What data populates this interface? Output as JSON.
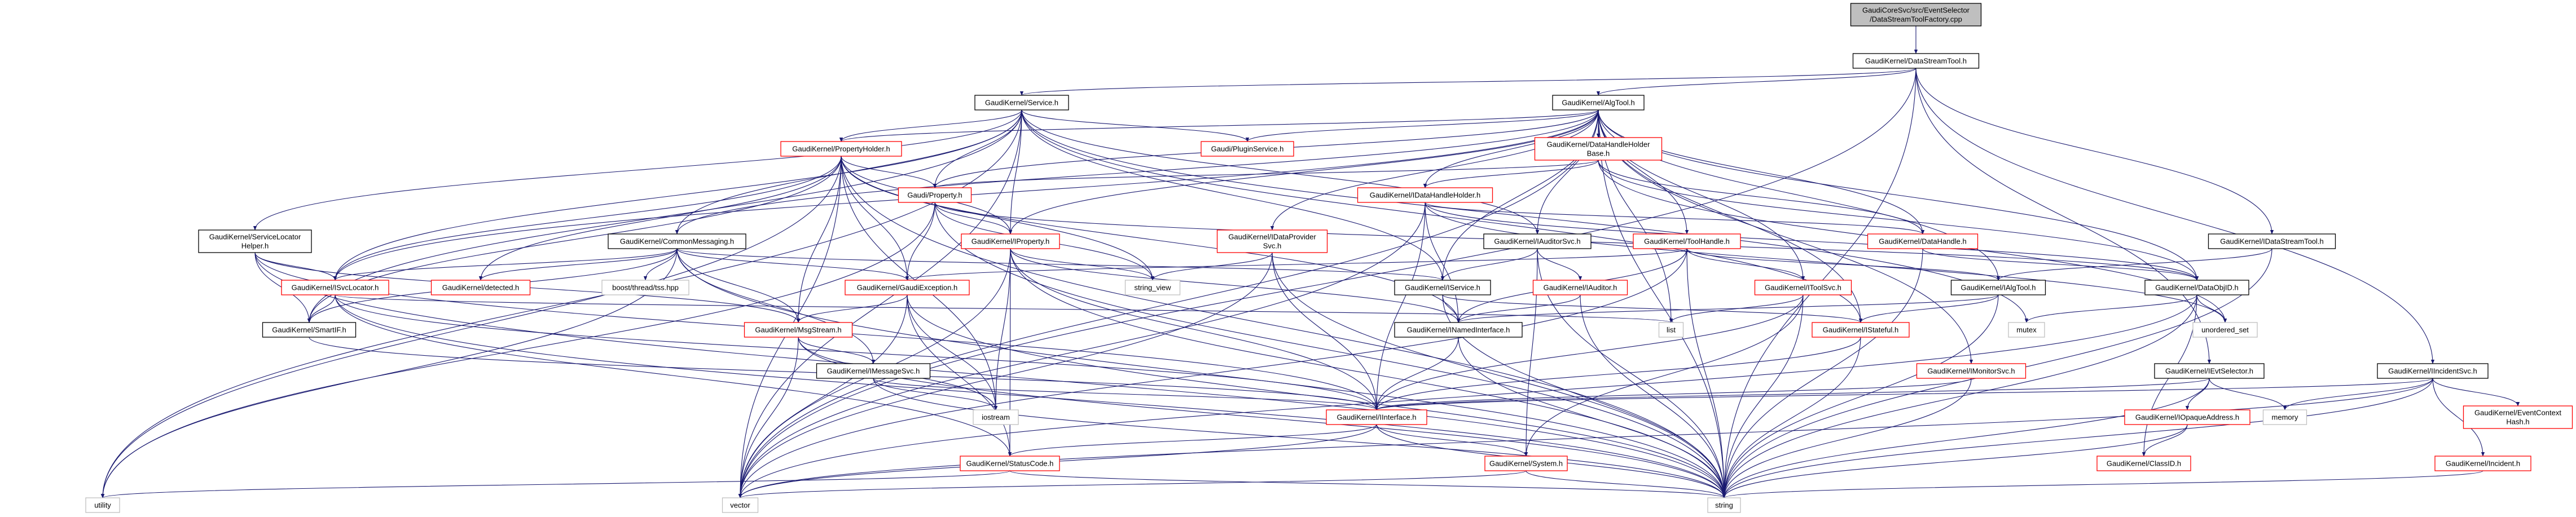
{
  "colors": {
    "edge": "#191970",
    "red_border": "#ff0000",
    "black_border": "#000000",
    "external_border": "#bfbfbf",
    "root_fill": "#bfbfbf"
  },
  "nodes": {
    "root": {
      "lines": [
        "GaudiCoreSvc/src/EventSelector",
        "/DataStreamToolFactory.cpp"
      ],
      "kind": "root"
    },
    "DataStreamTool": {
      "lines": [
        "GaudiKernel/DataStreamTool.h"
      ],
      "kind": "black"
    },
    "Service": {
      "lines": [
        "GaudiKernel/Service.h"
      ],
      "kind": "black"
    },
    "AlgTool": {
      "lines": [
        "GaudiKernel/AlgTool.h"
      ],
      "kind": "black"
    },
    "PropertyHolder": {
      "lines": [
        "GaudiKernel/PropertyHolder.h"
      ],
      "kind": "red"
    },
    "PluginService": {
      "lines": [
        "Gaudi/PluginService.h"
      ],
      "kind": "red"
    },
    "DataHandleHolderBase": {
      "lines": [
        "GaudiKernel/DataHandleHolder",
        "Base.h"
      ],
      "kind": "red"
    },
    "Property": {
      "lines": [
        "Gaudi/Property.h"
      ],
      "kind": "red"
    },
    "IDataHandleHolder": {
      "lines": [
        "GaudiKernel/IDataHandleHolder.h"
      ],
      "kind": "red"
    },
    "ServiceLocatorHelper": {
      "lines": [
        "GaudiKernel/ServiceLocator",
        "Helper.h"
      ],
      "kind": "black"
    },
    "CommonMessaging": {
      "lines": [
        "GaudiKernel/CommonMessaging.h"
      ],
      "kind": "black"
    },
    "IProperty": {
      "lines": [
        "GaudiKernel/IProperty.h"
      ],
      "kind": "red"
    },
    "IDataProviderSvc": {
      "lines": [
        "GaudiKernel/IDataProvider",
        "Svc.h"
      ],
      "kind": "red"
    },
    "IAuditorSvc": {
      "lines": [
        "GaudiKernel/IAuditorSvc.h"
      ],
      "kind": "black"
    },
    "ToolHandle": {
      "lines": [
        "GaudiKernel/ToolHandle.h"
      ],
      "kind": "red"
    },
    "DataHandle": {
      "lines": [
        "GaudiKernel/DataHandle.h"
      ],
      "kind": "red"
    },
    "IDataStreamTool": {
      "lines": [
        "GaudiKernel/IDataStreamTool.h"
      ],
      "kind": "black"
    },
    "ISvcLocator": {
      "lines": [
        "GaudiKernel/ISvcLocator.h"
      ],
      "kind": "red"
    },
    "detected": {
      "lines": [
        "GaudiKernel/detected.h"
      ],
      "kind": "red"
    },
    "boost": {
      "lines": [
        "boost/thread/tss.hpp"
      ],
      "kind": "external"
    },
    "GaudiException": {
      "lines": [
        "GaudiKernel/GaudiException.h"
      ],
      "kind": "red"
    },
    "string_view": {
      "lines": [
        "string_view"
      ],
      "kind": "external"
    },
    "IService": {
      "lines": [
        "GaudiKernel/IService.h"
      ],
      "kind": "black"
    },
    "IAuditor": {
      "lines": [
        "GaudiKernel/IAuditor.h"
      ],
      "kind": "red"
    },
    "IToolSvc": {
      "lines": [
        "GaudiKernel/IToolSvc.h"
      ],
      "kind": "red"
    },
    "IAlgTool": {
      "lines": [
        "GaudiKernel/IAlgTool.h"
      ],
      "kind": "black"
    },
    "DataObjID": {
      "lines": [
        "GaudiKernel/DataObjID.h"
      ],
      "kind": "black"
    },
    "SmartIF": {
      "lines": [
        "GaudiKernel/SmartIF.h"
      ],
      "kind": "black"
    },
    "MsgStream": {
      "lines": [
        "GaudiKernel/MsgStream.h"
      ],
      "kind": "red"
    },
    "INamedInterface": {
      "lines": [
        "GaudiKernel/INamedInterface.h"
      ],
      "kind": "black"
    },
    "list": {
      "lines": [
        "list"
      ],
      "kind": "external"
    },
    "IStateful": {
      "lines": [
        "GaudiKernel/IStateful.h"
      ],
      "kind": "red"
    },
    "mutex": {
      "lines": [
        "mutex"
      ],
      "kind": "external"
    },
    "unordered_set": {
      "lines": [
        "unordered_set"
      ],
      "kind": "external"
    },
    "IMessageSvc": {
      "lines": [
        "GaudiKernel/IMessageSvc.h"
      ],
      "kind": "black"
    },
    "IMonitorSvc": {
      "lines": [
        "GaudiKernel/IMonitorSvc.h"
      ],
      "kind": "red"
    },
    "IEvtSelector": {
      "lines": [
        "GaudiKernel/IEvtSelector.h"
      ],
      "kind": "black"
    },
    "IIncidentSvc": {
      "lines": [
        "GaudiKernel/IIncidentSvc.h"
      ],
      "kind": "black"
    },
    "iostream": {
      "lines": [
        "iostream"
      ],
      "kind": "external"
    },
    "IInterface": {
      "lines": [
        "GaudiKernel/IInterface.h"
      ],
      "kind": "red"
    },
    "IOpaqueAddress": {
      "lines": [
        "GaudiKernel/IOpaqueAddress.h"
      ],
      "kind": "red"
    },
    "memory": {
      "lines": [
        "memory"
      ],
      "kind": "external"
    },
    "EventContextHash": {
      "lines": [
        "GaudiKernel/EventContext",
        "Hash.h"
      ],
      "kind": "red"
    },
    "StatusCode": {
      "lines": [
        "GaudiKernel/StatusCode.h"
      ],
      "kind": "red"
    },
    "System": {
      "lines": [
        "GaudiKernel/System.h"
      ],
      "kind": "red"
    },
    "ClassID": {
      "lines": [
        "GaudiKernel/ClassID.h"
      ],
      "kind": "red"
    },
    "Incident": {
      "lines": [
        "GaudiKernel/Incident.h"
      ],
      "kind": "red"
    },
    "utility": {
      "lines": [
        "utility"
      ],
      "kind": "external"
    },
    "vector": {
      "lines": [
        "vector"
      ],
      "kind": "external"
    },
    "string": {
      "lines": [
        "string"
      ],
      "kind": "external"
    }
  },
  "edges": [
    [
      "root",
      "DataStreamTool"
    ],
    [
      "DataStreamTool",
      "Service"
    ],
    [
      "DataStreamTool",
      "AlgTool"
    ],
    [
      "DataStreamTool",
      "IDataStreamTool"
    ],
    [
      "DataStreamTool",
      "IEvtSelector"
    ],
    [
      "DataStreamTool",
      "IIncidentSvc"
    ],
    [
      "DataStreamTool",
      "vector"
    ],
    [
      "DataStreamTool",
      "string"
    ],
    [
      "Service",
      "PropertyHolder"
    ],
    [
      "Service",
      "PluginService"
    ],
    [
      "Service",
      "Property"
    ],
    [
      "Service",
      "IProperty"
    ],
    [
      "Service",
      "IService"
    ],
    [
      "Service",
      "IAuditorSvc"
    ],
    [
      "Service",
      "CommonMessaging"
    ],
    [
      "Service",
      "ISvcLocator"
    ],
    [
      "Service",
      "ServiceLocatorHelper"
    ],
    [
      "Service",
      "SmartIF"
    ],
    [
      "Service",
      "IStateful"
    ],
    [
      "Service",
      "mutex"
    ],
    [
      "Service",
      "utility"
    ],
    [
      "Service",
      "vector"
    ],
    [
      "AlgTool",
      "DataHandleHolderBase"
    ],
    [
      "AlgTool",
      "IDataHandleHolder"
    ],
    [
      "AlgTool",
      "PropertyHolder"
    ],
    [
      "AlgTool",
      "PluginService"
    ],
    [
      "AlgTool",
      "Property"
    ],
    [
      "AlgTool",
      "IProperty"
    ],
    [
      "AlgTool",
      "CommonMessaging"
    ],
    [
      "AlgTool",
      "IAlgTool"
    ],
    [
      "AlgTool",
      "IAuditorSvc"
    ],
    [
      "AlgTool",
      "IDataProviderSvc"
    ],
    [
      "AlgTool",
      "IMonitorSvc"
    ],
    [
      "AlgTool",
      "IService"
    ],
    [
      "AlgTool",
      "IStateful"
    ],
    [
      "AlgTool",
      "ISvcLocator"
    ],
    [
      "AlgTool",
      "IToolSvc"
    ],
    [
      "AlgTool",
      "ToolHandle"
    ],
    [
      "AlgTool",
      "DataHandle"
    ],
    [
      "AlgTool",
      "DataObjID"
    ],
    [
      "AlgTool",
      "list"
    ],
    [
      "AlgTool",
      "vector"
    ],
    [
      "AlgTool",
      "string"
    ],
    [
      "PropertyHolder",
      "Property"
    ],
    [
      "PropertyHolder",
      "IProperty"
    ],
    [
      "PropertyHolder",
      "detected"
    ],
    [
      "PropertyHolder",
      "GaudiException"
    ],
    [
      "PropertyHolder",
      "MsgStream"
    ],
    [
      "PropertyHolder",
      "INamedInterface"
    ],
    [
      "PropertyHolder",
      "ISvcLocator"
    ],
    [
      "PropertyHolder",
      "SmartIF"
    ],
    [
      "PropertyHolder",
      "string"
    ],
    [
      "PropertyHolder",
      "utility"
    ],
    [
      "PropertyHolder",
      "vector"
    ],
    [
      "PropertyHolder",
      "iostream"
    ],
    [
      "PropertyHolder",
      "string_view"
    ],
    [
      "Property",
      "IProperty"
    ],
    [
      "Property",
      "GaudiException"
    ],
    [
      "Property",
      "string_view"
    ],
    [
      "Property",
      "string"
    ],
    [
      "Property",
      "utility"
    ],
    [
      "Property",
      "DataObjID"
    ],
    [
      "DataHandleHolderBase",
      "IDataHandleHolder"
    ],
    [
      "DataHandleHolderBase",
      "DataHandle"
    ],
    [
      "DataHandleHolderBase",
      "DataObjID"
    ],
    [
      "DataHandleHolderBase",
      "unordered_set"
    ],
    [
      "DataHandleHolderBase",
      "Property"
    ],
    [
      "IDataHandleHolder",
      "DataHandle"
    ],
    [
      "IDataHandleHolder",
      "DataObjID"
    ],
    [
      "IDataHandleHolder",
      "INamedInterface"
    ],
    [
      "IDataHandleHolder",
      "IInterface"
    ],
    [
      "IDataHandleHolder",
      "vector"
    ],
    [
      "IDataHandleHolder",
      "unordered_set"
    ],
    [
      "ServiceLocatorHelper",
      "ISvcLocator"
    ],
    [
      "ServiceLocatorHelper",
      "SmartIF"
    ],
    [
      "ServiceLocatorHelper",
      "MsgStream"
    ],
    [
      "ServiceLocatorHelper",
      "string"
    ],
    [
      "ServiceLocatorHelper",
      "IInterface"
    ],
    [
      "CommonMessaging",
      "ISvcLocator"
    ],
    [
      "CommonMessaging",
      "detected"
    ],
    [
      "CommonMessaging",
      "boost"
    ],
    [
      "CommonMessaging",
      "GaudiException"
    ],
    [
      "CommonMessaging",
      "IService"
    ],
    [
      "CommonMessaging",
      "MsgStream"
    ],
    [
      "CommonMessaging",
      "IMessageSvc"
    ],
    [
      "CommonMessaging",
      "SmartIF"
    ],
    [
      "CommonMessaging",
      "utility"
    ],
    [
      "CommonMessaging",
      "string"
    ],
    [
      "IProperty",
      "INamedInterface"
    ],
    [
      "IProperty",
      "IInterface"
    ],
    [
      "IProperty",
      "string"
    ],
    [
      "IProperty",
      "string_view"
    ],
    [
      "IProperty",
      "iostream"
    ],
    [
      "IProperty",
      "vector"
    ],
    [
      "IProperty",
      "StatusCode"
    ],
    [
      "IDataProviderSvc",
      "IInterface"
    ],
    [
      "IDataProviderSvc",
      "string_view"
    ],
    [
      "IDataProviderSvc",
      "string"
    ],
    [
      "IDataProviderSvc",
      "vector"
    ],
    [
      "IAuditorSvc",
      "IService"
    ],
    [
      "IAuditorSvc",
      "IAuditor"
    ],
    [
      "IAuditorSvc",
      "System"
    ],
    [
      "IAuditorSvc",
      "string"
    ],
    [
      "ToolHandle",
      "IAlgTool"
    ],
    [
      "ToolHandle",
      "IToolSvc"
    ],
    [
      "ToolHandle",
      "GaudiException"
    ],
    [
      "ToolHandle",
      "INamedInterface"
    ],
    [
      "ToolHandle",
      "string"
    ],
    [
      "ToolHandle",
      "vector"
    ],
    [
      "DataHandle",
      "DataObjID"
    ],
    [
      "DataHandle",
      "string"
    ],
    [
      "IDataStreamTool",
      "IAlgTool"
    ],
    [
      "IDataStreamTool",
      "string"
    ],
    [
      "ISvcLocator",
      "SmartIF"
    ],
    [
      "ISvcLocator",
      "IInterface"
    ],
    [
      "ISvcLocator",
      "list"
    ],
    [
      "ISvcLocator",
      "string"
    ],
    [
      "ISvcLocator",
      "StatusCode"
    ],
    [
      "GaudiException",
      "MsgStream"
    ],
    [
      "GaudiException",
      "StatusCode"
    ],
    [
      "GaudiException",
      "iostream"
    ],
    [
      "GaudiException",
      "string"
    ],
    [
      "GaudiException",
      "vector"
    ],
    [
      "IService",
      "INamedInterface"
    ],
    [
      "IService",
      "IStateful"
    ],
    [
      "IService",
      "string"
    ],
    [
      "IAuditor",
      "INamedInterface"
    ],
    [
      "IAuditor",
      "string"
    ],
    [
      "IToolSvc",
      "IInterface"
    ],
    [
      "IToolSvc",
      "list"
    ],
    [
      "IToolSvc",
      "string"
    ],
    [
      "IToolSvc",
      "System"
    ],
    [
      "IAlgTool",
      "INamedInterface"
    ],
    [
      "IAlgTool",
      "IStateful"
    ],
    [
      "IAlgTool",
      "string"
    ],
    [
      "DataObjID",
      "ClassID"
    ],
    [
      "DataObjID",
      "string"
    ],
    [
      "DataObjID",
      "unordered_set"
    ],
    [
      "DataObjID",
      "mutex"
    ],
    [
      "DataObjID",
      "vector"
    ],
    [
      "SmartIF",
      "IInterface"
    ],
    [
      "MsgStream",
      "IMessageSvc"
    ],
    [
      "MsgStream",
      "iostream"
    ],
    [
      "MsgStream",
      "vector"
    ],
    [
      "MsgStream",
      "string"
    ],
    [
      "INamedInterface",
      "IInterface"
    ],
    [
      "INamedInterface",
      "string"
    ],
    [
      "IStateful",
      "IInterface"
    ],
    [
      "IStateful",
      "string"
    ],
    [
      "IMessageSvc",
      "IInterface"
    ],
    [
      "IMessageSvc",
      "iostream"
    ],
    [
      "IMessageSvc",
      "string"
    ],
    [
      "IMonitorSvc",
      "IInterface"
    ],
    [
      "IMonitorSvc",
      "string"
    ],
    [
      "IEvtSelector",
      "IOpaqueAddress"
    ],
    [
      "IEvtSelector",
      "IInterface"
    ],
    [
      "IEvtSelector",
      "memory"
    ],
    [
      "IEvtSelector",
      "string"
    ],
    [
      "IIncidentSvc",
      "IInterface"
    ],
    [
      "IIncidentSvc",
      "EventContextHash"
    ],
    [
      "IIncidentSvc",
      "Incident"
    ],
    [
      "IIncidentSvc",
      "memory"
    ],
    [
      "IIncidentSvc",
      "string"
    ],
    [
      "IIncidentSvc",
      "vector"
    ],
    [
      "IInterface",
      "StatusCode"
    ],
    [
      "IInterface",
      "System"
    ],
    [
      "IInterface",
      "string"
    ],
    [
      "IInterface",
      "vector"
    ],
    [
      "IOpaqueAddress",
      "ClassID"
    ],
    [
      "IOpaqueAddress",
      "string"
    ],
    [
      "Incident",
      "string"
    ],
    [
      "System",
      "string"
    ],
    [
      "System",
      "vector"
    ],
    [
      "StatusCode",
      "utility"
    ],
    [
      "StatusCode",
      "string"
    ]
  ]
}
